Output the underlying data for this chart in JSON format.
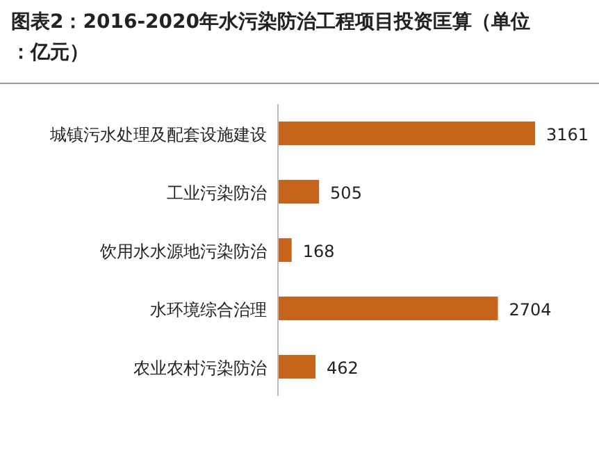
{
  "chart_data": {
    "type": "bar",
    "orientation": "horizontal",
    "title": "图表2：2016-2020年水污染防治工程项目投资匡算（单位：亿元）",
    "categories": [
      "城镇污水处理及配套设施建设",
      "工业污染防治",
      "饮用水水源地污染防治",
      "水环境综合治理",
      "农业农村污染防治"
    ],
    "values": [
      3161,
      505,
      168,
      2704,
      462
    ],
    "color": "#c5651c",
    "data_labels": true
  }
}
